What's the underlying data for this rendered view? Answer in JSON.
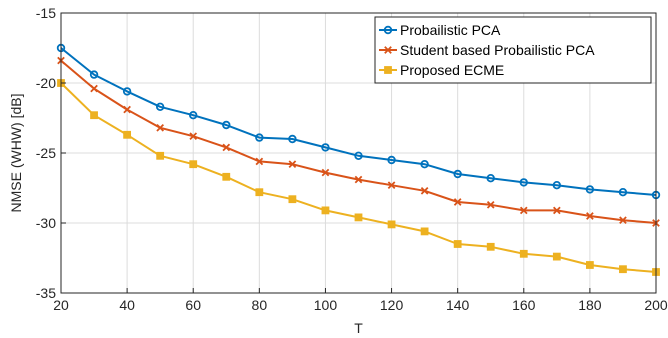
{
  "chart_data": {
    "type": "line",
    "xlabel": "T",
    "ylabel": "NMSE (WHW) [dB]",
    "xlim": [
      20,
      200
    ],
    "ylim": [
      -35,
      -15
    ],
    "xticks": [
      20,
      40,
      60,
      80,
      100,
      120,
      140,
      160,
      180,
      200
    ],
    "yticks": [
      -35,
      -30,
      -25,
      -20,
      -15
    ],
    "grid": true,
    "legend_position": "top-right",
    "x": [
      20,
      30,
      40,
      50,
      60,
      70,
      80,
      90,
      100,
      110,
      120,
      130,
      140,
      150,
      160,
      170,
      180,
      190,
      200
    ],
    "series": [
      {
        "name": "Probailistic PCA",
        "color": "#0072BD",
        "marker": "circle",
        "values": [
          -17.5,
          -19.4,
          -20.6,
          -21.7,
          -22.3,
          -23.0,
          -23.9,
          -24.0,
          -24.6,
          -25.2,
          -25.5,
          -25.8,
          -26.5,
          -26.8,
          -27.1,
          -27.3,
          -27.6,
          -27.8,
          -28.0
        ]
      },
      {
        "name": "Student based Probailistic PCA",
        "color": "#D95319",
        "marker": "x",
        "values": [
          -18.4,
          -20.4,
          -21.9,
          -23.2,
          -23.8,
          -24.6,
          -25.6,
          -25.8,
          -26.4,
          -26.9,
          -27.3,
          -27.7,
          -28.5,
          -28.7,
          -29.1,
          -29.1,
          -29.5,
          -29.8,
          -30.0
        ]
      },
      {
        "name": "Proposed ECME",
        "color": "#EDB120",
        "marker": "square",
        "values": [
          -20.0,
          -22.3,
          -23.7,
          -25.2,
          -25.8,
          -26.7,
          -27.8,
          -28.3,
          -29.1,
          -29.6,
          -30.1,
          -30.6,
          -31.5,
          -31.7,
          -32.2,
          -32.4,
          -33.0,
          -33.3,
          -33.5
        ]
      }
    ]
  }
}
